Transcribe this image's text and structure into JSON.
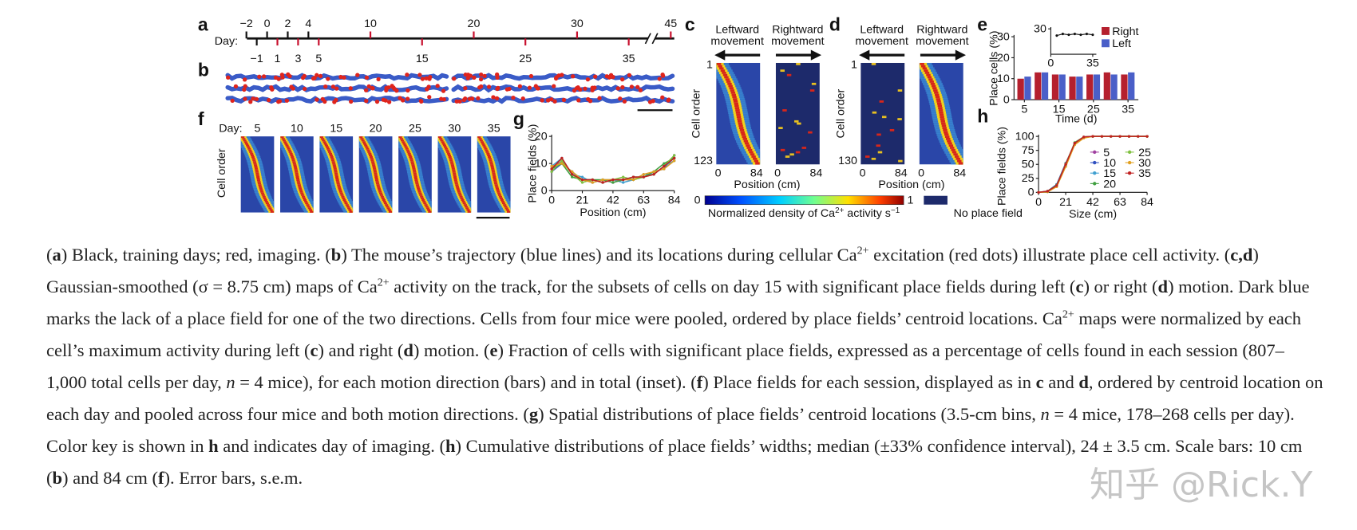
{
  "figure": {
    "a": {
      "letter": "a",
      "day_label": "Day:",
      "colors": {
        "training": "#111111",
        "imaging": "#c8102e"
      },
      "ticks": [
        {
          "value": -2,
          "label": "−2",
          "kind": "training"
        },
        {
          "value": -1,
          "label": "−1",
          "kind": "training"
        },
        {
          "value": 0,
          "kind": "training"
        },
        {
          "value": 1,
          "kind": "imaging"
        },
        {
          "value": 2,
          "kind": "training"
        },
        {
          "value": 3,
          "kind": "imaging"
        },
        {
          "value": 4,
          "kind": "training"
        },
        {
          "value": 5,
          "kind": "imaging"
        },
        {
          "value": 10,
          "kind": "imaging"
        },
        {
          "value": 15,
          "kind": "imaging"
        },
        {
          "value": 20,
          "kind": "imaging"
        },
        {
          "value": 25,
          "kind": "imaging"
        },
        {
          "value": 30,
          "kind": "imaging"
        },
        {
          "value": 35,
          "kind": "imaging"
        },
        {
          "value": 45,
          "kind": "imaging"
        }
      ]
    },
    "b": {
      "letter": "b"
    },
    "c": {
      "letter": "c",
      "left_heading": [
        "Leftward",
        "movement"
      ],
      "right_heading": [
        "Rightward",
        "movement"
      ],
      "first_cell": 1,
      "last_cell": 123,
      "y_label": "Cell order",
      "x_ticks": [
        0,
        84
      ],
      "x_label": "Position (cm)"
    },
    "d": {
      "letter": "d",
      "left_heading": [
        "Leftward",
        "movement"
      ],
      "right_heading": [
        "Rightward",
        "movement"
      ],
      "first_cell": 1,
      "last_cell": 130,
      "y_label": "Cell order",
      "x_ticks": [
        0,
        84
      ],
      "x_label": "Position (cm)"
    },
    "colorbar": {
      "min": 0,
      "max": 1,
      "label": [
        {
          "t": "Normalized density of Ca"
        },
        {
          "t": "2+",
          "s": "sup"
        },
        {
          "t": " activity s"
        },
        {
          "t": "−1",
          "s": "sup"
        }
      ],
      "no_place_field": "No place field"
    },
    "e": {
      "letter": "e",
      "y_label": "Place cells (%)",
      "x_label": "Time (d)",
      "xlim": [
        2,
        38
      ],
      "ylim": [
        0,
        30
      ],
      "xticks": [
        5,
        15,
        25,
        35
      ],
      "yticks": [
        0,
        10,
        20,
        30
      ],
      "days": [
        5,
        10,
        15,
        20,
        25,
        30,
        35
      ],
      "series": [
        {
          "name": "Right",
          "color": "#b5202e",
          "values": [
            10,
            13,
            12,
            11,
            12,
            13,
            12
          ]
        },
        {
          "name": "Left",
          "color": "#4a5fc8",
          "values": [
            11,
            13,
            12,
            11,
            12,
            12,
            13
          ]
        }
      ],
      "inset": {
        "x": [
          5,
          10,
          15,
          20,
          25,
          30,
          35
        ],
        "values": [
          22,
          24,
          23,
          24,
          23,
          24,
          23
        ],
        "xlim": [
          0,
          38
        ],
        "ylim": [
          0,
          30
        ],
        "xticks": [
          0,
          35
        ],
        "yticks": [
          30
        ]
      }
    },
    "f": {
      "letter": "f",
      "day_label": "Day:",
      "days": [
        5,
        10,
        15,
        20,
        25,
        30,
        35
      ],
      "y_label": "Cell order"
    },
    "g": {
      "letter": "g",
      "y_label": "Place fields (%)",
      "x_label": "Position (cm)",
      "xlim": [
        0,
        84
      ],
      "ylim": [
        0,
        20
      ],
      "xticks": [
        0,
        21,
        42,
        63,
        84
      ],
      "yticks": [
        0,
        10,
        20
      ],
      "x": [
        0,
        7,
        14,
        21,
        28,
        35,
        42,
        49,
        56,
        63,
        70,
        77,
        84
      ],
      "series": [
        {
          "color": "#a040a0",
          "values": [
            8,
            11,
            6,
            4,
            3,
            4,
            3,
            4,
            4,
            5,
            6,
            9,
            12
          ]
        },
        {
          "color": "#3050c0",
          "values": [
            7,
            10,
            7,
            4,
            4,
            3,
            4,
            4,
            5,
            5,
            7,
            8,
            13
          ]
        },
        {
          "color": "#40a0d0",
          "values": [
            9,
            12,
            6,
            5,
            3,
            4,
            4,
            3,
            4,
            6,
            6,
            9,
            11
          ]
        },
        {
          "color": "#40a040",
          "values": [
            8,
            10,
            5,
            4,
            4,
            4,
            3,
            4,
            5,
            5,
            7,
            10,
            12
          ]
        },
        {
          "color": "#80c040",
          "values": [
            7,
            11,
            6,
            3,
            4,
            3,
            4,
            5,
            4,
            5,
            6,
            9,
            13
          ]
        },
        {
          "color": "#e0a020",
          "values": [
            9,
            10,
            7,
            4,
            3,
            4,
            4,
            4,
            4,
            6,
            7,
            8,
            11
          ]
        },
        {
          "color": "#c02020",
          "values": [
            8,
            12,
            6,
            4,
            4,
            3,
            4,
            4,
            5,
            5,
            6,
            9,
            12
          ]
        }
      ]
    },
    "h": {
      "letter": "h",
      "y_label": "Place fields (%)",
      "x_label": "Size (cm)",
      "xlim": [
        0,
        84
      ],
      "ylim": [
        0,
        100
      ],
      "xticks": [
        0,
        21,
        42,
        63,
        84
      ],
      "yticks": [
        0,
        25,
        50,
        75,
        100
      ],
      "x": [
        0,
        7,
        14,
        21,
        28,
        35,
        42,
        49,
        56,
        63,
        70,
        77,
        84
      ],
      "series": [
        {
          "name": "5",
          "color": "#a040a0",
          "values": [
            0,
            1,
            12,
            50,
            88,
            99,
            100,
            100,
            100,
            100,
            100,
            100,
            100
          ]
        },
        {
          "name": "10",
          "color": "#3050c0",
          "values": [
            0,
            2,
            14,
            52,
            87,
            98,
            100,
            100,
            100,
            100,
            100,
            100,
            100
          ]
        },
        {
          "name": "15",
          "color": "#40a0d0",
          "values": [
            0,
            1,
            11,
            47,
            86,
            98,
            100,
            100,
            100,
            100,
            100,
            100,
            100
          ]
        },
        {
          "name": "20",
          "color": "#40a040",
          "values": [
            0,
            2,
            13,
            49,
            89,
            99,
            100,
            100,
            100,
            100,
            100,
            100,
            100
          ]
        },
        {
          "name": "25",
          "color": "#80c040",
          "values": [
            0,
            1,
            12,
            51,
            88,
            98,
            100,
            100,
            100,
            100,
            100,
            100,
            100
          ]
        },
        {
          "name": "30",
          "color": "#e0a020",
          "values": [
            0,
            1,
            10,
            46,
            85,
            97,
            100,
            100,
            100,
            100,
            100,
            100,
            100
          ]
        },
        {
          "name": "35",
          "color": "#c02020",
          "values": [
            0,
            2,
            12,
            50,
            88,
            99,
            100,
            100,
            100,
            100,
            100,
            100,
            100
          ]
        }
      ]
    }
  },
  "caption": [
    {
      "t": "("
    },
    {
      "t": "a",
      "s": "b"
    },
    {
      "t": ") Black, training days; red, imaging. ("
    },
    {
      "t": "b",
      "s": "b"
    },
    {
      "t": ") The mouse’s trajectory (blue lines) and its locations during cellular Ca"
    },
    {
      "t": "2+",
      "s": "sup"
    },
    {
      "t": " excitation (red dots) illustrate place cell activity. ("
    },
    {
      "t": "c,d",
      "s": "b"
    },
    {
      "t": ") Gaussian-smoothed (σ = 8.75 cm) maps of Ca"
    },
    {
      "t": "2+",
      "s": "sup"
    },
    {
      "t": " activity on the track, for the subsets of cells on day 15 with significant place fields during left ("
    },
    {
      "t": "c",
      "s": "b"
    },
    {
      "t": ") or right ("
    },
    {
      "t": "d",
      "s": "b"
    },
    {
      "t": ") motion. Dark blue marks the lack of a place field for one of the two directions. Cells from four mice were pooled, ordered by place fields’ centroid locations. Ca"
    },
    {
      "t": "2+",
      "s": "sup"
    },
    {
      "t": " maps were normalized by each cell’s maximum activity during left ("
    },
    {
      "t": "c",
      "s": "b"
    },
    {
      "t": ") and right ("
    },
    {
      "t": "d",
      "s": "b"
    },
    {
      "t": ") motion. ("
    },
    {
      "t": "e",
      "s": "b"
    },
    {
      "t": ") Fraction of cells with significant place fields, expressed as a percentage of cells found in each session (807–1,000 total cells per day, "
    },
    {
      "t": "n",
      "s": "i"
    },
    {
      "t": " = 4 mice), for each motion direction (bars) and in total (inset). ("
    },
    {
      "t": "f",
      "s": "b"
    },
    {
      "t": ") Place fields for each session, displayed as in "
    },
    {
      "t": "c",
      "s": "b"
    },
    {
      "t": " and "
    },
    {
      "t": "d",
      "s": "b"
    },
    {
      "t": ", ordered by centroid location on each day and pooled across four mice and both motion directions. ("
    },
    {
      "t": "g",
      "s": "b"
    },
    {
      "t": ") Spatial distributions of place fields’ centroid locations (3.5-cm bins, "
    },
    {
      "t": "n",
      "s": "i"
    },
    {
      "t": " = 4 mice, 178–268 cells per day). Color key is shown in "
    },
    {
      "t": "h",
      "s": "b"
    },
    {
      "t": " and indicates day of imaging. ("
    },
    {
      "t": "h",
      "s": "b"
    },
    {
      "t": ") Cumulative distributions of place fields’ widths; median (±33% confidence interval), 24 ± 3.5 cm. Scale bars: 10 cm ("
    },
    {
      "t": "b",
      "s": "b"
    },
    {
      "t": ") and 84 cm ("
    },
    {
      "t": "f",
      "s": "b"
    },
    {
      "t": "). Error bars, s.e.m."
    }
  ],
  "watermark": "知乎 @Rick.Y"
}
